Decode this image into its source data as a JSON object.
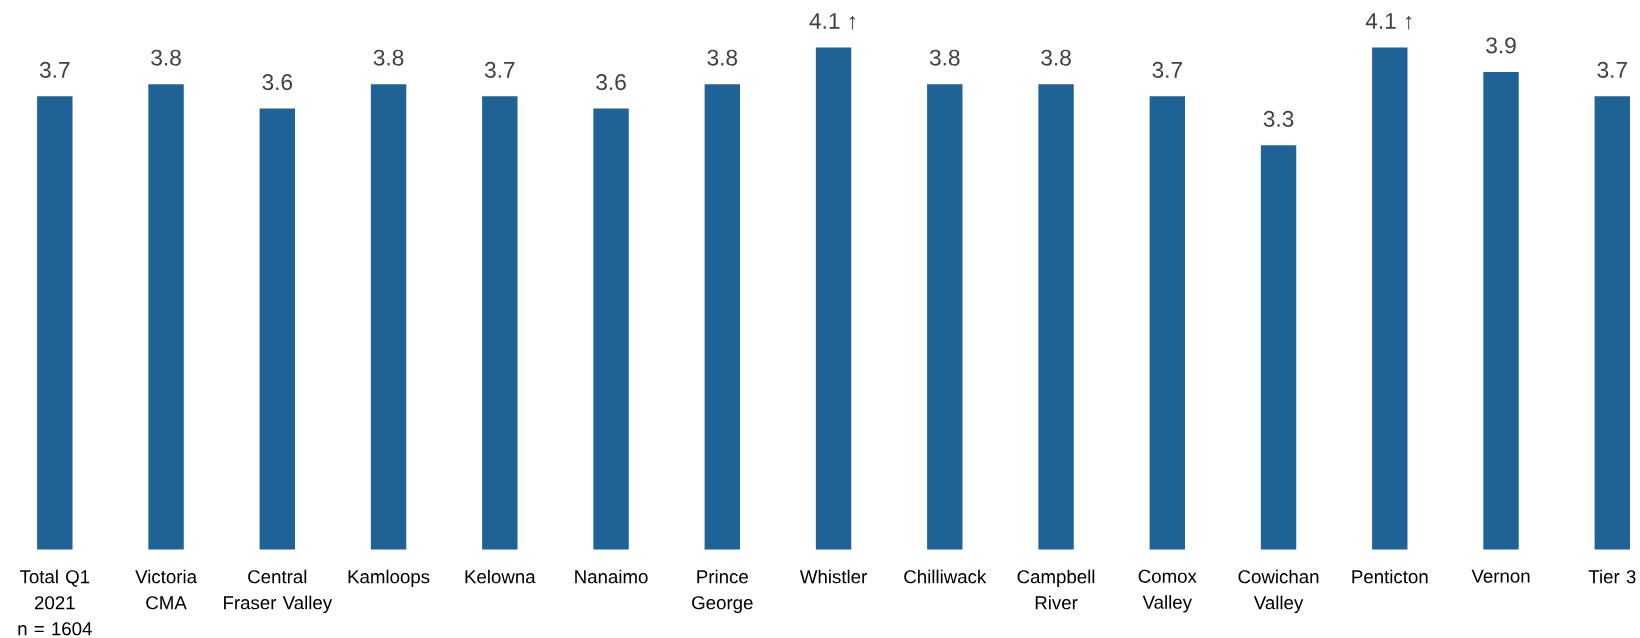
{
  "chart_data": {
    "type": "bar",
    "categories": [
      "Total Q1\n2021\nn = 1604",
      "Victoria\nCMA",
      "Central\nFraser Valley",
      "Kamloops",
      "Kelowna",
      "Nanaimo",
      "Prince\nGeorge",
      "Whistler",
      "Chilliwack",
      "Campbell\nRiver",
      "Comox\nValley",
      "Cowichan\nValley",
      "Penticton",
      "Vernon",
      "Tier 3"
    ],
    "values": [
      3.7,
      3.8,
      3.6,
      3.8,
      3.7,
      3.6,
      3.8,
      4.1,
      3.8,
      3.8,
      3.7,
      3.3,
      4.1,
      3.9,
      3.7
    ],
    "value_labels": [
      "3.7",
      "3.8",
      "3.6",
      "3.8",
      "3.7",
      "3.6",
      "3.8",
      "4.1 ↑",
      "3.8",
      "3.8",
      "3.7",
      "3.3",
      "4.1 ↑",
      "3.9",
      "3.7"
    ],
    "color": "#1f6396"
  }
}
